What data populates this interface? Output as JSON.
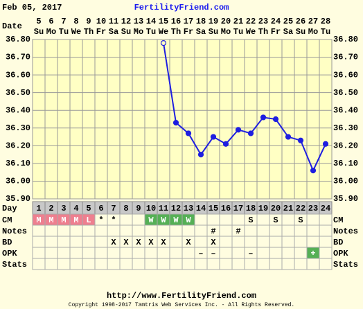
{
  "header": {
    "date": "Feb 05, 2017",
    "site": "FertilityFriend.com"
  },
  "chart_data": {
    "type": "line",
    "x_label": "Date",
    "categories": [
      "5",
      "6",
      "7",
      "8",
      "9",
      "10",
      "11",
      "12",
      "13",
      "14",
      "15",
      "16",
      "17",
      "18",
      "19",
      "20",
      "21",
      "22",
      "23",
      "24",
      "25",
      "26",
      "27",
      "28"
    ],
    "weekdays": [
      "Su",
      "Mo",
      "Tu",
      "We",
      "Th",
      "Fr",
      "Sa",
      "Su",
      "Mo",
      "Tu",
      "We",
      "Th",
      "Fr",
      "Sa",
      "Su",
      "Mo",
      "Tu",
      "We",
      "Th",
      "Fr",
      "Sa",
      "Su",
      "Mo",
      "Tu"
    ],
    "day_label": "Day",
    "days": [
      1,
      2,
      3,
      4,
      5,
      6,
      7,
      8,
      9,
      10,
      11,
      12,
      13,
      14,
      15,
      16,
      17,
      18,
      19,
      20,
      21,
      22,
      23,
      24
    ],
    "series": [
      {
        "color": "#1e1ee0",
        "open_points": [
          10
        ],
        "values": [
          null,
          null,
          null,
          null,
          null,
          null,
          null,
          null,
          null,
          null,
          36.78,
          36.33,
          36.27,
          36.15,
          36.25,
          36.21,
          36.29,
          36.27,
          36.36,
          36.35,
          36.25,
          36.23,
          36.06,
          36.21
        ]
      }
    ],
    "ylim": [
      35.9,
      36.8
    ],
    "yticks": [
      {
        "value": 35.9,
        "label": "35.90"
      },
      {
        "value": 36.0,
        "label": "36.00"
      },
      {
        "value": 36.1,
        "label": "36.10"
      },
      {
        "value": 36.2,
        "label": "36.20"
      },
      {
        "value": 36.3,
        "label": "36.30"
      },
      {
        "value": 36.4,
        "label": "36.40"
      },
      {
        "value": 36.5,
        "label": "36.50"
      },
      {
        "value": 36.6,
        "label": "36.60"
      },
      {
        "value": 36.7,
        "label": "36.70"
      },
      {
        "value": 36.8,
        "label": "36.80"
      }
    ],
    "grid": true,
    "rows": [
      {
        "label": "CM",
        "cells": [
          "M",
          "M",
          "M",
          "M",
          "L",
          "*",
          "*",
          null,
          null,
          "W",
          "W",
          "W",
          "W",
          null,
          null,
          null,
          null,
          "S",
          null,
          "S",
          null,
          "S",
          null,
          null
        ]
      },
      {
        "label": "Notes",
        "cells": [
          null,
          null,
          null,
          null,
          null,
          null,
          null,
          null,
          null,
          null,
          null,
          null,
          null,
          null,
          "#",
          null,
          "#",
          null,
          null,
          null,
          null,
          null,
          null,
          null
        ]
      },
      {
        "label": "BD",
        "cells": [
          null,
          null,
          null,
          null,
          null,
          null,
          "X",
          "X",
          "X",
          "X",
          "X",
          null,
          "X",
          null,
          "X",
          null,
          null,
          null,
          null,
          null,
          null,
          null,
          null,
          null
        ]
      },
      {
        "label": "OPK",
        "cells": [
          null,
          null,
          null,
          null,
          null,
          null,
          null,
          null,
          null,
          null,
          null,
          null,
          null,
          "–",
          "–",
          null,
          null,
          "–",
          null,
          null,
          null,
          null,
          "+",
          null
        ]
      },
      {
        "label": "Stats",
        "cells": [
          null,
          null,
          null,
          null,
          null,
          null,
          null,
          null,
          null,
          null,
          null,
          null,
          null,
          null,
          null,
          null,
          null,
          null,
          null,
          null,
          null,
          null,
          null,
          null
        ]
      }
    ],
    "cell_colors": {
      "M": "#ee7f8f",
      "L": "#ee7f8f",
      "W": "#55b055",
      "+": "#55b055"
    }
  },
  "footer": {
    "url": "http://www.FertilityFriend.com",
    "copyright": "Copyright 1998-2017 Tamtris Web Services Inc. - All Rights Reserved."
  }
}
